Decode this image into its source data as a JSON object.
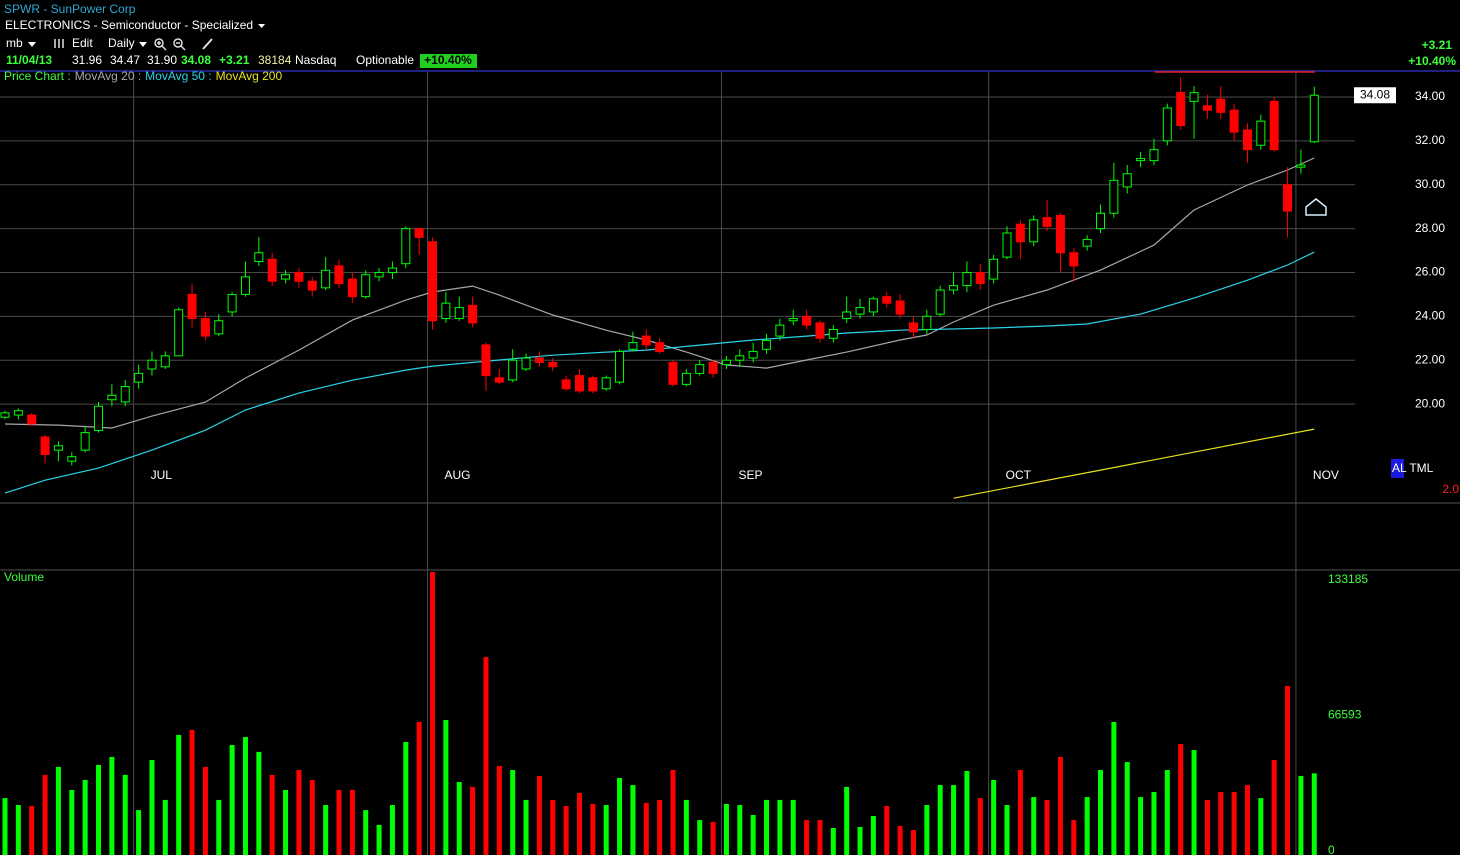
{
  "header": {
    "symbol": "SPWR - SunPower Corp",
    "industry": "ELECTRONICS - Semiconductor - Specialized",
    "toolbar": {
      "layout": "mb",
      "edit": "Edit",
      "period": "Daily"
    },
    "quote": {
      "date": "11/04/13",
      "open": "31.96",
      "high": "34.47",
      "low": "31.90",
      "last": "34.08",
      "change": "+3.21",
      "volume": "38184",
      "exchange": "Nasdaq",
      "optionable": "Optionable",
      "change_pct": "+10.40%"
    },
    "summary": {
      "change": "+3.21",
      "change_pct": "+10.40%"
    }
  },
  "chart_data": [
    {
      "type": "candlestick",
      "title": "Price Chart :",
      "categories": [
        null,
        null,
        null,
        null,
        null,
        null,
        null,
        null,
        null,
        null,
        "JUL",
        null,
        null,
        null,
        null,
        null,
        null,
        null,
        null,
        null,
        null,
        null,
        null,
        null,
        null,
        null,
        null,
        null,
        null,
        null,
        null,
        null,
        "AUG",
        null,
        null,
        null,
        null,
        null,
        null,
        null,
        null,
        null,
        null,
        null,
        null,
        null,
        null,
        null,
        null,
        null,
        null,
        null,
        null,
        null,
        "SEP",
        null,
        null,
        null,
        null,
        null,
        null,
        null,
        null,
        null,
        null,
        null,
        null,
        null,
        null,
        null,
        null,
        null,
        null,
        null,
        "OCT",
        null,
        null,
        null,
        null,
        null,
        null,
        null,
        null,
        null,
        null,
        null,
        null,
        null,
        null,
        null,
        null,
        null,
        null,
        null,
        null,
        null,
        null,
        "NOV",
        null
      ],
      "open": [
        19.4,
        19.5,
        19.5,
        18.5,
        17.9,
        17.4,
        17.9,
        18.8,
        20.2,
        20.1,
        21.0,
        21.6,
        21.7,
        22.2,
        25.0,
        23.9,
        23.2,
        24.2,
        25.0,
        26.5,
        26.6,
        25.7,
        26.0,
        25.6,
        25.3,
        26.3,
        25.7,
        24.9,
        25.8,
        26.0,
        26.4,
        28.0,
        27.4,
        23.9,
        23.9,
        24.5,
        22.7,
        21.2,
        21.1,
        21.6,
        22.1,
        21.9,
        21.1,
        21.3,
        21.2,
        20.7,
        21.0,
        22.5,
        23.1,
        22.8,
        21.9,
        20.9,
        21.4,
        21.9,
        21.8,
        22.0,
        22.1,
        22.5,
        23.1,
        23.8,
        24.0,
        23.7,
        23.0,
        23.9,
        24.1,
        24.2,
        24.9,
        24.7,
        23.7,
        23.4,
        24.1,
        25.2,
        25.4,
        26.0,
        25.7,
        26.7,
        28.2,
        27.4,
        28.5,
        28.6,
        26.9,
        27.2,
        28.0,
        28.7,
        29.9,
        31.1,
        31.1,
        32.0,
        34.2,
        33.8,
        33.6,
        33.9,
        33.4,
        32.5,
        31.8,
        33.8,
        30.0,
        30.8,
        31.96
      ],
      "high": [
        19.7,
        19.8,
        19.6,
        18.6,
        18.3,
        17.8,
        19.0,
        20.1,
        20.9,
        21.1,
        21.8,
        22.4,
        22.4,
        24.4,
        25.5,
        24.2,
        24.1,
        25.1,
        26.5,
        27.6,
        26.9,
        26.1,
        26.2,
        25.8,
        26.7,
        26.6,
        26.0,
        26.1,
        26.2,
        26.5,
        28.1,
        28.0,
        27.6,
        25.1,
        24.9,
        24.9,
        22.8,
        21.6,
        22.5,
        22.3,
        22.4,
        22.1,
        21.3,
        21.6,
        21.3,
        21.3,
        22.5,
        23.3,
        23.4,
        23.0,
        22.0,
        21.6,
        22.0,
        22.0,
        22.2,
        22.5,
        22.8,
        23.2,
        23.9,
        24.3,
        24.3,
        23.8,
        23.6,
        24.9,
        24.8,
        24.9,
        25.1,
        25.0,
        24.0,
        24.3,
        25.4,
        26.0,
        26.5,
        26.4,
        26.8,
        28.1,
        28.4,
        28.6,
        29.3,
        28.7,
        27.1,
        27.7,
        29.1,
        31.0,
        30.9,
        31.5,
        32.1,
        33.7,
        34.9,
        34.5,
        34.1,
        34.5,
        33.7,
        32.8,
        33.2,
        34.0,
        30.8,
        31.6,
        34.47
      ],
      "low": [
        19.3,
        19.3,
        19.0,
        17.3,
        17.4,
        17.2,
        17.8,
        18.7,
        19.9,
        19.9,
        20.7,
        21.3,
        21.6,
        22.2,
        23.5,
        22.9,
        23.1,
        24.0,
        24.9,
        26.3,
        25.4,
        25.5,
        25.3,
        24.9,
        25.2,
        25.3,
        24.6,
        24.8,
        25.6,
        25.7,
        26.2,
        26.8,
        23.4,
        23.7,
        23.8,
        23.5,
        20.6,
        20.9,
        21.0,
        21.5,
        21.7,
        21.5,
        20.6,
        20.5,
        20.5,
        20.6,
        20.9,
        22.4,
        22.5,
        22.3,
        20.8,
        20.8,
        21.3,
        21.2,
        21.6,
        21.7,
        21.9,
        22.3,
        22.9,
        23.6,
        23.4,
        22.8,
        22.8,
        23.7,
        23.9,
        24.0,
        24.4,
        23.9,
        23.0,
        23.2,
        24.0,
        25.0,
        25.1,
        25.2,
        25.5,
        26.6,
        26.6,
        27.2,
        27.9,
        26.0,
        25.6,
        27.0,
        27.8,
        28.5,
        29.6,
        30.8,
        30.9,
        31.8,
        32.5,
        32.1,
        33.0,
        33.0,
        32.0,
        31.0,
        31.6,
        31.5,
        27.6,
        30.5,
        31.9
      ],
      "close": [
        19.6,
        19.7,
        19.1,
        17.7,
        18.1,
        17.6,
        18.7,
        19.9,
        20.4,
        20.8,
        21.4,
        22.0,
        22.2,
        24.3,
        23.9,
        23.1,
        23.8,
        25.0,
        25.8,
        26.9,
        25.6,
        25.9,
        25.6,
        25.2,
        26.1,
        25.5,
        24.9,
        25.9,
        26.0,
        26.2,
        28.0,
        27.6,
        23.8,
        24.6,
        24.4,
        23.7,
        21.3,
        21.0,
        22.0,
        22.1,
        21.9,
        21.7,
        20.7,
        20.6,
        20.6,
        21.2,
        22.4,
        22.8,
        22.7,
        22.4,
        20.9,
        21.4,
        21.8,
        21.4,
        22.0,
        22.2,
        22.4,
        22.9,
        23.6,
        23.9,
        23.6,
        23.0,
        23.4,
        24.2,
        24.4,
        24.8,
        24.6,
        24.1,
        23.3,
        24.0,
        25.2,
        25.4,
        26.0,
        25.5,
        26.6,
        27.8,
        27.4,
        28.4,
        28.1,
        26.9,
        26.3,
        27.5,
        28.7,
        30.2,
        30.5,
        31.2,
        31.6,
        33.5,
        32.7,
        34.2,
        33.4,
        33.3,
        32.4,
        31.6,
        32.9,
        31.6,
        28.8,
        30.9,
        34.08
      ],
      "up_color": "#00ff00",
      "down_color": "#ff0000",
      "moving_averages": [
        {
          "name": "MovAvg 20 :",
          "color": "#a8a8a8",
          "x": [
            0,
            4,
            8,
            11,
            15,
            18,
            22,
            26,
            30,
            32,
            35,
            37,
            41,
            45,
            48,
            51,
            54,
            57,
            60,
            63,
            67,
            69,
            71,
            74,
            78,
            82,
            86,
            89,
            93,
            96,
            98
          ],
          "values": [
            19.09,
            19.04,
            18.91,
            19.45,
            20.09,
            21.19,
            22.46,
            23.83,
            24.74,
            25.11,
            25.38,
            24.97,
            24.06,
            23.37,
            22.92,
            22.37,
            21.78,
            21.64,
            22.01,
            22.37,
            22.92,
            23.15,
            23.74,
            24.51,
            25.2,
            26.11,
            27.25,
            28.85,
            29.99,
            30.67,
            31.22
          ]
        },
        {
          "name": "MovAvg 50 :",
          "color": "#2ad4e8",
          "x": [
            0,
            3,
            7,
            11,
            15,
            18,
            22,
            26,
            30,
            32,
            37,
            41,
            45,
            48,
            52,
            56,
            60,
            63,
            67,
            74,
            78,
            81,
            85,
            89,
            93,
            96,
            98
          ],
          "values": [
            15.94,
            16.53,
            17.08,
            17.9,
            18.81,
            19.73,
            20.5,
            21.09,
            21.55,
            21.73,
            22.01,
            22.23,
            22.37,
            22.46,
            22.69,
            22.92,
            23.1,
            23.24,
            23.37,
            23.47,
            23.56,
            23.65,
            24.1,
            24.83,
            25.65,
            26.34,
            26.93
          ]
        },
        {
          "name": "MovAvg 200",
          "color": "#e8e020",
          "x": [
            71,
            82,
            98
          ],
          "values": [
            15.71,
            16.99,
            18.86
          ]
        }
      ],
      "ylim": [
        15.49,
        35.14
      ],
      "yticks": [
        {
          "value": 20,
          "label": "20.00"
        },
        {
          "value": 22,
          "label": "22.00"
        },
        {
          "value": 24,
          "label": "24.00"
        },
        {
          "value": 26,
          "label": "26.00"
        },
        {
          "value": 28,
          "label": "28.00"
        },
        {
          "value": 30,
          "label": "30.00"
        },
        {
          "value": 32,
          "label": "32.00"
        },
        {
          "value": 34,
          "label": "34.00"
        }
      ],
      "grid": true,
      "last_label": "34.08",
      "indicator": "AL TML",
      "indicator_value": "2.0"
    },
    {
      "type": "bar",
      "title": "Volume",
      "up_color": "#00ff00",
      "down_color": "#ff0000",
      "values": [
        26000,
        22600,
        22100,
        37400,
        41300,
        30000,
        34900,
        42300,
        46200,
        37400,
        20100,
        44700,
        25100,
        57000,
        59500,
        41300,
        25100,
        52100,
        56000,
        48700,
        37400,
        30000,
        39800,
        34900,
        22600,
        30000,
        30000,
        20100,
        12800,
        22600,
        53600,
        63400,
        137100,
        64400,
        33900,
        31500,
        95300,
        41800,
        39800,
        25100,
        36900,
        25100,
        22100,
        28500,
        23100,
        22600,
        35900,
        32400,
        23600,
        25100,
        39800,
        25100,
        15200,
        14300,
        23100,
        22600,
        17700,
        25100,
        25100,
        25100,
        15200,
        15200,
        11300,
        31500,
        11800,
        17200,
        22100,
        12300,
        10300,
        22600,
        32400,
        32400,
        39300,
        26000,
        34900,
        22600,
        39800,
        26500,
        25100,
        46200,
        15200,
        26500,
        39800,
        63400,
        43700,
        26500,
        29000,
        39800,
        52600,
        49600,
        25100,
        29000,
        29000,
        32400,
        26000,
        44700,
        81100,
        36900,
        38184
      ],
      "ylim": [
        0,
        137600
      ],
      "yticks": [
        0,
        66593,
        133185
      ]
    }
  ]
}
